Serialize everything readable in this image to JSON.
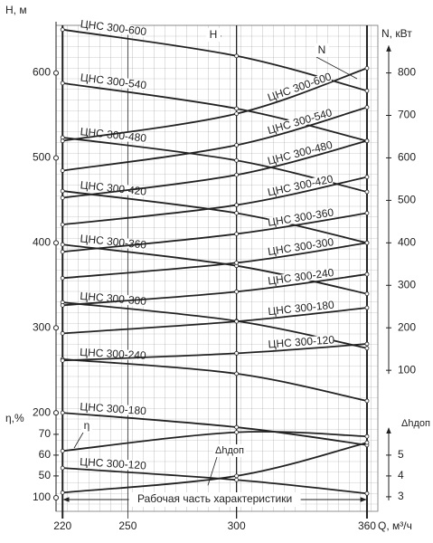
{
  "chart_data": {
    "type": "line",
    "x_label": "Q, м³/ч",
    "y_label": "H, м",
    "y2_label": "N, кВт",
    "y3_label": "η,%",
    "y4_label": "Δhдоп",
    "annotations": [
      "H",
      "N",
      "Рабочая часть характеристики"
    ],
    "x": [
      220,
      300,
      360
    ],
    "xlim": [
      217,
      365
    ],
    "xticks": [
      220,
      250,
      300,
      360
    ],
    "ylim": [
      84,
      656
    ],
    "yticks": [
      100,
      200,
      300,
      400,
      500,
      600
    ],
    "y2lim": [
      -232,
      912
    ],
    "y2ticks": [
      100,
      200,
      300,
      400,
      500,
      600,
      700,
      800
    ],
    "y3lim": [
      33,
      266.5
    ],
    "y3ticks": [
      50,
      60,
      70
    ],
    "y4lim": [
      2.3,
      25.65
    ],
    "y4ticks": [
      3,
      4,
      5
    ],
    "grid": true,
    "series": [
      {
        "name": "ЦНС 300-600",
        "axis": "y",
        "color": "#222",
        "values": [
          651,
          620,
          579
        ]
      },
      {
        "name": "ЦНС 300-540",
        "axis": "y",
        "color": "#222",
        "values": [
          588,
          558,
          520
        ]
      },
      {
        "name": "ЦНС 300-480",
        "axis": "y",
        "color": "#222",
        "values": [
          524,
          497,
          460
        ]
      },
      {
        "name": "ЦНС 300-420",
        "axis": "y",
        "color": "#222",
        "values": [
          461,
          435,
          400
        ]
      },
      {
        "name": "ЦНС 300-360",
        "axis": "y",
        "color": "#222",
        "values": [
          398,
          373,
          340
        ]
      },
      {
        "name": "ЦНС 300-300",
        "axis": "y",
        "color": "#222",
        "values": [
          330,
          308,
          276
        ]
      },
      {
        "name": "ЦНС 300-240",
        "axis": "y",
        "color": "#222",
        "values": [
          263,
          246,
          214
        ]
      },
      {
        "name": "ЦНС 300-180",
        "axis": "y",
        "color": "#222",
        "values": [
          200,
          183,
          162
        ]
      },
      {
        "name": "ЦНС 300-120",
        "axis": "y",
        "color": "#222",
        "values": [
          135,
          121,
          105
        ]
      },
      {
        "name": "ЦНС 300-600",
        "axis": "y2",
        "color": "#222",
        "values": [
          640,
          704,
          811
        ]
      },
      {
        "name": "ЦНС 300-540",
        "axis": "y2",
        "color": "#222",
        "values": [
          570,
          630,
          719
        ]
      },
      {
        "name": "ЦНС 300-480",
        "axis": "y2",
        "color": "#222",
        "values": [
          506,
          560,
          640
        ]
      },
      {
        "name": "ЦНС 300-420",
        "axis": "y2",
        "color": "#222",
        "values": [
          443,
          489,
          555
        ]
      },
      {
        "name": "ЦНС 300-360",
        "axis": "y2",
        "color": "#222",
        "values": [
          379,
          421,
          470
        ]
      },
      {
        "name": "ЦНС 300-300",
        "axis": "y2",
        "color": "#222",
        "values": [
          317,
          353,
          400
        ]
      },
      {
        "name": "ЦНС 300-240",
        "axis": "y2",
        "color": "#222",
        "values": [
          253,
          285,
          326
        ]
      },
      {
        "name": "ЦНС 300-180",
        "axis": "y2",
        "color": "#222",
        "values": [
          187,
          215,
          247
        ]
      },
      {
        "name": "ЦНС 300-120",
        "axis": "y2",
        "color": "#222",
        "values": [
          123,
          140,
          162
        ]
      },
      {
        "name": "η",
        "axis": "y3",
        "color": "#222",
        "values": [
          62,
          71,
          69
        ]
      },
      {
        "name": "Δhдоп",
        "axis": "y4",
        "color": "#222",
        "values": [
          3.2,
          4.0,
          5.6
        ]
      }
    ]
  }
}
